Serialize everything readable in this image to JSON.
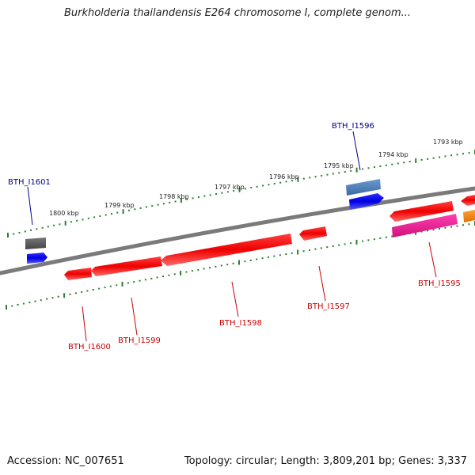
{
  "title": "Burkholderia thailandensis E264 chromosome I, complete genom...",
  "footer": {
    "accession": "Accession: NC_007651",
    "summary": "Topology: circular; Length: 3,809,201 bp; Genes: 3,337"
  },
  "colors": {
    "backbone": "#808080",
    "tick": "#2e7d32",
    "gene_forward_label": "#00008b",
    "gene_reverse_label": "#cc0000",
    "red": "#ff1f1f",
    "blue": "#1010ff",
    "steelblue": "#4a7fb8",
    "gray": "#555555",
    "pink": "#e8189a",
    "orange": "#ff8c00"
  },
  "scale": {
    "ticks": [
      "1800 kbp",
      "1799 kbp",
      "1798 kbp",
      "1797 kbp",
      "1796 kbp",
      "1795 kbp",
      "1794 kbp",
      "1793 kbp"
    ]
  },
  "genes": [
    {
      "name": "BTH_I1601",
      "strand": "forward",
      "label": "BTH_I1601"
    },
    {
      "name": "BTH_I1596",
      "strand": "forward",
      "label": "BTH_I1596"
    },
    {
      "name": "BTH_I1595",
      "strand": "reverse",
      "label": "BTH_I1595"
    },
    {
      "name": "BTH_I1597",
      "strand": "reverse",
      "label": "BTH_I1597"
    },
    {
      "name": "BTH_I1598",
      "strand": "reverse",
      "label": "BTH_I1598"
    },
    {
      "name": "BTH_I1599",
      "strand": "reverse",
      "label": "BTH_I1599"
    },
    {
      "name": "BTH_I1600",
      "strand": "reverse",
      "label": "BTH_I1600"
    }
  ]
}
